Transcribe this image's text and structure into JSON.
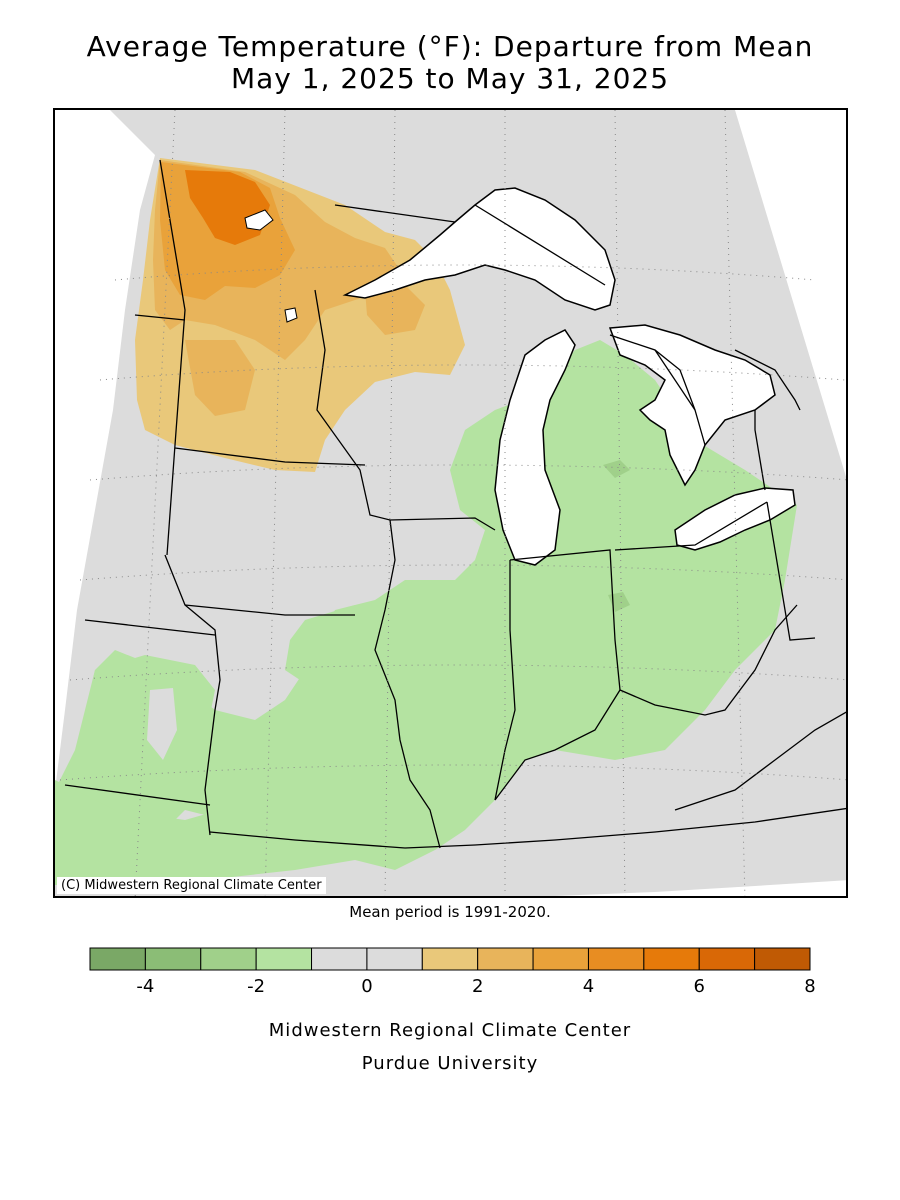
{
  "title_line1": "Average Temperature (°F): Departure from Mean",
  "title_line2": "May 1, 2025 to May 31, 2025",
  "copyright": "(C) Midwestern Regional Climate Center",
  "mean_period": "Mean period is 1991-2020.",
  "legend": {
    "bins": [
      {
        "from": -5,
        "to": -4,
        "color": "#7aa866"
      },
      {
        "from": -4,
        "to": -3,
        "color": "#8bbd76"
      },
      {
        "from": -3,
        "to": -2,
        "color": "#a0d08a"
      },
      {
        "from": -2,
        "to": -1,
        "color": "#b4e3a1"
      },
      {
        "from": -1,
        "to": 0,
        "color": "#dcdcdc"
      },
      {
        "from": 0,
        "to": 1,
        "color": "#dcdcdc"
      },
      {
        "from": 1,
        "to": 2,
        "color": "#e9c87a"
      },
      {
        "from": 2,
        "to": 3,
        "color": "#e8b45b"
      },
      {
        "from": 3,
        "to": 4,
        "color": "#e9a23a"
      },
      {
        "from": 4,
        "to": 5,
        "color": "#e88d22"
      },
      {
        "from": 5,
        "to": 6,
        "color": "#e67a0a"
      },
      {
        "from": 6,
        "to": 7,
        "color": "#d96806"
      },
      {
        "from": 7,
        "to": 8,
        "color": "#c05a04"
      }
    ],
    "tick_labels": [
      "-4",
      "-2",
      "0",
      "2",
      "4",
      "6",
      "8"
    ]
  },
  "credit_line1": "Midwestern Regional Climate Center",
  "credit_line2": "Purdue University",
  "colors": {
    "neutral": "#dcdcdc",
    "cool": "#b4e3a1",
    "cool_darker": "#a0d08a",
    "warm1": "#e9c87a",
    "warm2": "#e8b45b",
    "warm3": "#e9a23a",
    "warm5": "#e67a0a",
    "water": "#ffffff"
  }
}
